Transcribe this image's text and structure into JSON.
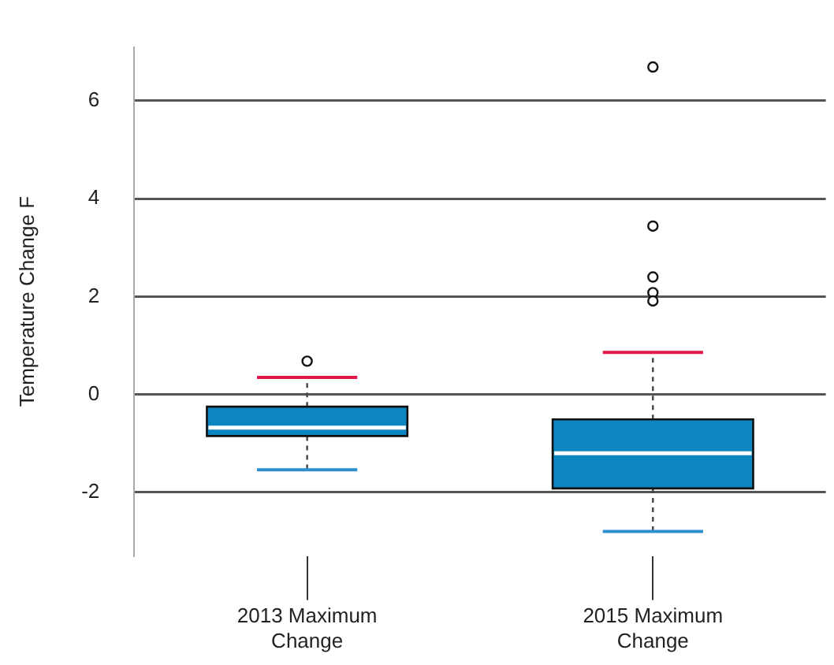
{
  "chart_data": {
    "type": "box",
    "ylabel": "Temperature Change F",
    "categories": [
      "2013 Maximum Change",
      "2015 Maximum Change"
    ],
    "series": [
      {
        "color": "#0b86c0",
        "boxes": [
          {
            "low": -1.54,
            "q1": -0.85,
            "median": -0.68,
            "q3": -0.25,
            "high": 0.35,
            "outliers": [
              0.68
            ]
          },
          {
            "low": -2.8,
            "q1": -1.92,
            "median": -1.2,
            "q3": -0.51,
            "high": 0.86,
            "outliers": [
              6.69,
              3.44,
              2.4,
              2.08,
              1.91
            ]
          }
        ]
      }
    ],
    "ylim": [
      -3.3,
      7.1
    ],
    "yticks": [
      -2,
      0,
      2,
      4,
      6
    ],
    "grid": "y"
  }
}
